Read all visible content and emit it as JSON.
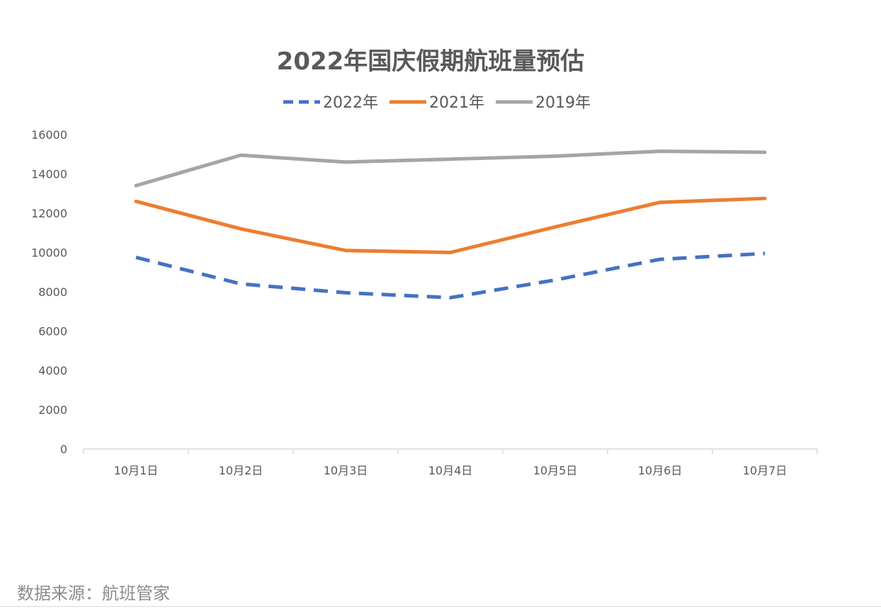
{
  "chart_data": {
    "type": "line",
    "title": "2022年国庆假期航班量预估",
    "categories": [
      "10月1日",
      "10月2日",
      "10月3日",
      "10月4日",
      "10月5日",
      "10月6日",
      "10月7日"
    ],
    "series": [
      {
        "name": "2022年",
        "values": [
          9750,
          8400,
          7950,
          7700,
          8600,
          9650,
          9950
        ],
        "color": "#4472c4",
        "style": "dashed"
      },
      {
        "name": "2021年",
        "values": [
          12600,
          11200,
          10100,
          10000,
          11300,
          12550,
          12750
        ],
        "color": "#ed7d31",
        "style": "solid"
      },
      {
        "name": "2019年",
        "values": [
          13400,
          14950,
          14600,
          14750,
          14900,
          15150,
          15100
        ],
        "color": "#a5a5a5",
        "style": "solid"
      }
    ],
    "yticks": [
      "0",
      "2000",
      "4000",
      "6000",
      "8000",
      "10000",
      "12000",
      "14000",
      "16000"
    ],
    "ylim": [
      0,
      16000
    ],
    "legend_position": "top",
    "grid": false
  },
  "source_note": "数据来源：航班管家"
}
